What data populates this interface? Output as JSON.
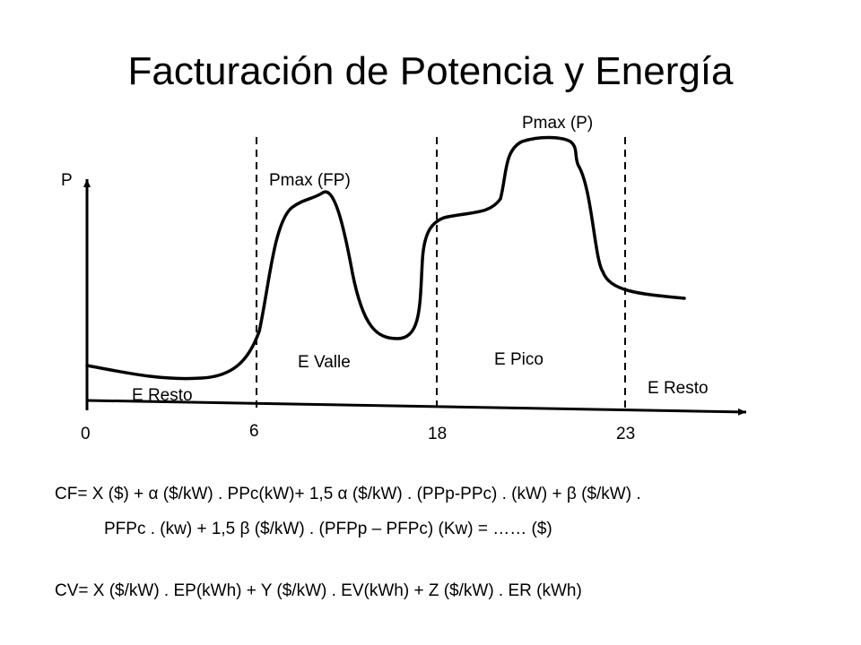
{
  "title": "Facturación de Potencia y Energía",
  "diagram": {
    "axis_y_label": "P",
    "ticks": [
      "0",
      "6",
      "18",
      "23"
    ],
    "labels": {
      "pmax_p": "Pmax (P)",
      "pmax_fp": "Pmax (FP)",
      "e_valle": "E Valle",
      "e_pico": "E Pico",
      "e_resto_left": "E Resto",
      "e_resto_right": "E Resto"
    }
  },
  "formulas": {
    "cf_line1": "CF= X ($) + α ($/kW) . PPc(kW)+ 1,5 α ($/kW) . (PPp-PPc) . (kW) + β ($/kW) .",
    "cf_line2": "PFPc . (kw) + 1,5 β ($/kW) . (PFPp – PFPc) (Kw) = …… ($)",
    "cv_line": "CV= X ($/kW) . EP(kWh) + Y ($/kW) . EV(kWh) + Z ($/kW) . ER (kWh)"
  }
}
